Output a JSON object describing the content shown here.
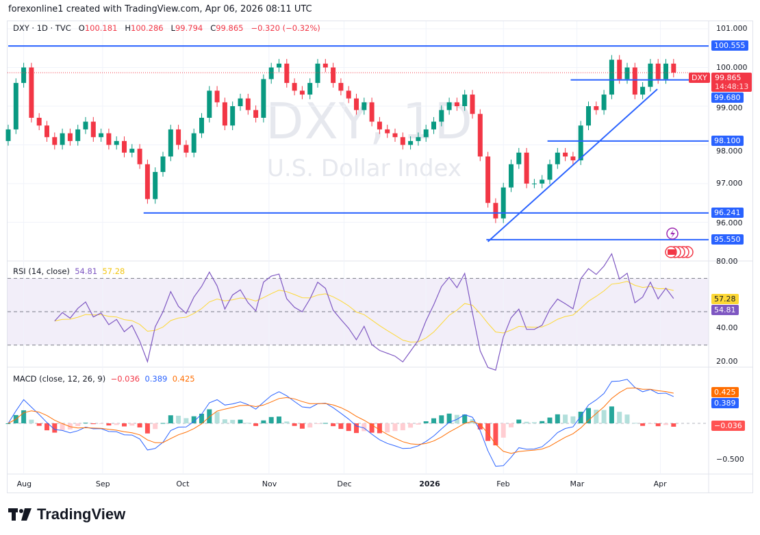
{
  "credit": "forexonline1 created with TradingView.com, Apr 06, 2026 08:11 UTC",
  "legend": {
    "symbol": "DXY · 1D · TVC",
    "o_label": "O",
    "o": "100.181",
    "h_label": "H",
    "h": "100.286",
    "l_label": "L",
    "l": "99.794",
    "c_label": "C",
    "c": "99.865",
    "change": "−0.320 (−0.32%)"
  },
  "watermark": {
    "line1": "DXY, 1D",
    "line2": "U.S. Dollar Index"
  },
  "colors": {
    "up": "#089981",
    "down": "#f23645",
    "level": "#2962ff",
    "rsi": "#7e57c2",
    "rsi_ma": "#fdd835",
    "macd": "#2962ff",
    "signal": "#ff6d00"
  },
  "price_axis": [
    "101.000",
    "100.000",
    "99.000",
    "98.000",
    "97.000",
    "96.000"
  ],
  "price_axis_values": [
    101,
    100,
    99,
    98,
    97,
    96
  ],
  "last_price": {
    "symbol": "DXY",
    "value": "99.865",
    "countdown": "14:48:13"
  },
  "levels": [
    {
      "price": 100.555,
      "label": "100.555",
      "from_bar": 0
    },
    {
      "price": 99.68,
      "label": "99.680",
      "from_bar": 72.7
    },
    {
      "price": 98.1,
      "label": "98.100",
      "from_bar": 69.7
    },
    {
      "price": 96.241,
      "label": "96.241",
      "from_bar": 17.5
    },
    {
      "price": 95.55,
      "label": "95.550",
      "from_bar": 61.8
    }
  ],
  "trendline": {
    "from": {
      "bar": 62,
      "price": 95.5
    },
    "to": {
      "bar": 83.9,
      "price": 99.44
    }
  },
  "rsi": {
    "title": "RSI (14, close)",
    "value": "54.81",
    "ma": "57.28",
    "axis": [
      "80.00",
      "40.00",
      "20.00"
    ],
    "axis_values": [
      80,
      40,
      20
    ],
    "bands": [
      70,
      50,
      30
    ]
  },
  "macd": {
    "title": "MACD (close, 12, 26, 9)",
    "hist": "−0.036",
    "macd": "0.389",
    "signal": "0.425",
    "axis": [
      "−0.500"
    ],
    "axis_values": [
      -0.5
    ]
  },
  "time_axis": [
    {
      "label": "Aug",
      "at_bar": 2.0
    },
    {
      "label": "Sep",
      "at_bar": 12.2
    },
    {
      "label": "Oct",
      "at_bar": 22.6
    },
    {
      "label": "Nov",
      "at_bar": 33.7
    },
    {
      "label": "Dec",
      "at_bar": 43.4
    },
    {
      "label": "2026",
      "at_bar": 54.0
    },
    {
      "label": "Feb",
      "at_bar": 64.0
    },
    {
      "label": "Mar",
      "at_bar": 73.5
    },
    {
      "label": "Apr",
      "at_bar": 84.3
    }
  ],
  "chart_data": {
    "type": "candlestick",
    "title": "DXY · 1D · TVC",
    "ylim": [
      95.3,
      101.2
    ],
    "grid": true,
    "closes": [
      98.4,
      99.6,
      100.0,
      98.7,
      98.5,
      98.2,
      98.0,
      98.3,
      98.1,
      98.4,
      98.6,
      98.2,
      98.3,
      98.0,
      98.1,
      97.8,
      97.9,
      97.5,
      96.6,
      97.3,
      97.7,
      98.4,
      98.0,
      97.8,
      98.3,
      98.7,
      99.4,
      99.1,
      98.5,
      99.0,
      99.2,
      98.9,
      98.7,
      99.7,
      100.0,
      100.1,
      99.6,
      99.4,
      99.3,
      99.6,
      100.1,
      100.0,
      99.6,
      99.4,
      99.2,
      98.9,
      99.1,
      98.6,
      98.4,
      98.3,
      98.2,
      98.0,
      98.1,
      98.2,
      98.4,
      98.6,
      98.9,
      99.1,
      99.0,
      99.3,
      98.8,
      97.7,
      96.5,
      96.1,
      96.9,
      97.5,
      97.8,
      97.0,
      97.0,
      97.1,
      97.5,
      97.8,
      97.7,
      97.6,
      98.5,
      99.0,
      98.9,
      99.3,
      100.2,
      99.7,
      100.0,
      99.3,
      99.5,
      100.1,
      99.7,
      100.1,
      99.865
    ]
  },
  "logo": "TradingView"
}
